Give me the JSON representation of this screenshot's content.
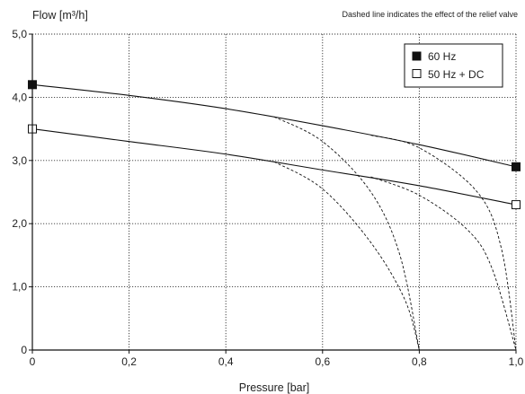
{
  "chart_data": {
    "type": "line",
    "title": "",
    "note": "Dashed line indicates the effect of the relief valve",
    "xlabel": "Pressure [bar]",
    "ylabel": "Flow [m³/h]",
    "xlim": [
      0,
      1.0
    ],
    "ylim": [
      0,
      5.0
    ],
    "x_ticks": [
      "0",
      "0,2",
      "0,4",
      "0,6",
      "0,8",
      "1,0"
    ],
    "x_tick_values": [
      0,
      0.2,
      0.4,
      0.6,
      0.8,
      1.0
    ],
    "y_ticks": [
      "0",
      "1,0",
      "2,0",
      "3,0",
      "4,0",
      "5,0"
    ],
    "y_tick_values": [
      0,
      1.0,
      2.0,
      3.0,
      4.0,
      5.0
    ],
    "grid": "dotted",
    "legend_position": "top-right",
    "series": [
      {
        "name": "60 Hz",
        "marker": "filled-square",
        "color": "#111111",
        "x": [
          0,
          0.2,
          0.4,
          0.6,
          0.8,
          1.0
        ],
        "y": [
          4.2,
          4.03,
          3.82,
          3.55,
          3.25,
          2.9
        ]
      },
      {
        "name": "50 Hz + DC",
        "marker": "open-square",
        "color": "#111111",
        "x": [
          0,
          0.2,
          0.4,
          0.6,
          0.8,
          1.0
        ],
        "y": [
          3.5,
          3.3,
          3.1,
          2.85,
          2.6,
          2.3
        ]
      }
    ],
    "relief_valve_curves": [
      {
        "x": [
          0.5,
          0.6,
          0.7,
          0.76,
          0.8
        ],
        "y": [
          3.69,
          3.3,
          2.5,
          1.5,
          0
        ]
      },
      {
        "x": [
          0.5,
          0.6,
          0.7,
          0.77,
          0.8
        ],
        "y": [
          2.98,
          2.55,
          1.7,
          0.8,
          0
        ]
      },
      {
        "x": [
          0.7,
          0.8,
          0.92,
          0.97,
          1.0
        ],
        "y": [
          3.4,
          3.2,
          2.5,
          1.6,
          0
        ]
      },
      {
        "x": [
          0.7,
          0.8,
          0.9,
          0.95,
          1.0
        ],
        "y": [
          2.74,
          2.45,
          1.9,
          1.3,
          0
        ]
      }
    ],
    "colors": {
      "line": "#111111",
      "grid": "#333333",
      "axis": "#111111",
      "marker_fill_open": "#ffffff"
    }
  }
}
